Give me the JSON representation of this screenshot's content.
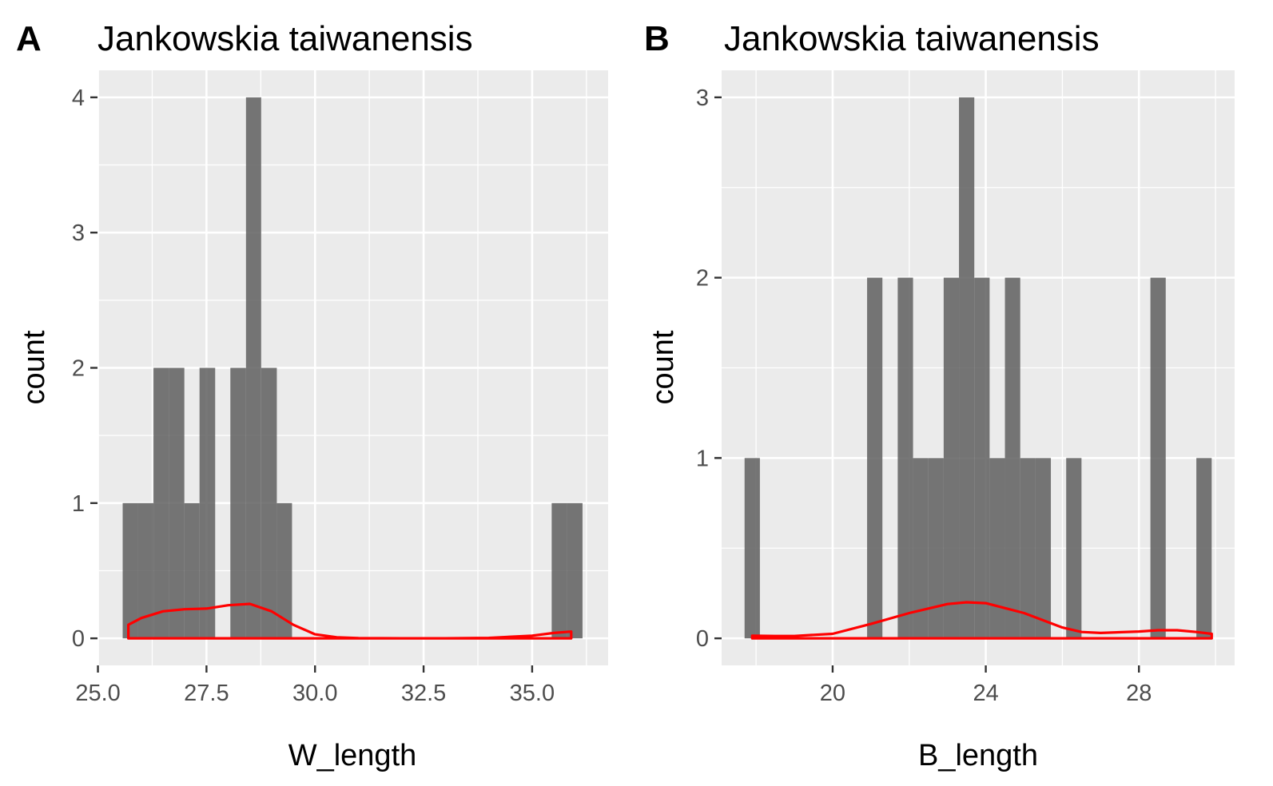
{
  "panels": [
    {
      "letter": "A",
      "title": "Jankowskia taiwanensis",
      "xlabel": "W_length",
      "ylabel": "count"
    },
    {
      "letter": "B",
      "title": "Jankowskia taiwanensis",
      "xlabel": "B_length",
      "ylabel": "count"
    }
  ],
  "colors": {
    "panel_bg": "#ebebeb",
    "grid": "#ffffff",
    "bar": "#595959",
    "density": "#ff0000"
  },
  "chart_data": [
    {
      "type": "bar",
      "subtype": "histogram with density overlay",
      "title": "Jankowskia taiwanensis",
      "xlabel": "W_length",
      "ylabel": "count",
      "xlim": [
        24.99,
        36.75
      ],
      "ylim": [
        -0.2,
        4.2
      ],
      "x_ticks": [
        25.0,
        27.5,
        30.0,
        32.5,
        35.0
      ],
      "x_tick_labels": [
        "25.0",
        "27.5",
        "30.0",
        "32.5",
        "35.0"
      ],
      "y_ticks": [
        0,
        1,
        2,
        3,
        4
      ],
      "y_tick_labels": [
        "0",
        "1",
        "2",
        "3",
        "4"
      ],
      "grid": true,
      "bin_width": 0.355,
      "bins": [
        {
          "x": [
            25.57,
            25.92
          ],
          "count": 1
        },
        {
          "x": [
            25.92,
            26.28
          ],
          "count": 1
        },
        {
          "x": [
            26.28,
            26.63
          ],
          "count": 2
        },
        {
          "x": [
            26.63,
            26.99
          ],
          "count": 2
        },
        {
          "x": [
            26.99,
            27.34
          ],
          "count": 1
        },
        {
          "x": [
            27.34,
            27.7
          ],
          "count": 2
        },
        {
          "x": [
            28.05,
            28.41
          ],
          "count": 2
        },
        {
          "x": [
            28.41,
            28.76
          ],
          "count": 4
        },
        {
          "x": [
            28.76,
            29.12
          ],
          "count": 2
        },
        {
          "x": [
            29.12,
            29.47
          ],
          "count": 1
        },
        {
          "x": [
            35.45,
            35.81
          ],
          "count": 1
        },
        {
          "x": [
            35.81,
            36.16
          ],
          "count": 1
        }
      ],
      "density": {
        "x": [
          25.7,
          26.0,
          26.5,
          27.0,
          27.5,
          28.0,
          28.5,
          29.0,
          29.5,
          30.0,
          30.5,
          31.0,
          32.0,
          33.0,
          34.0,
          35.0,
          35.5,
          35.9
        ],
        "y": [
          0.1,
          0.15,
          0.2,
          0.215,
          0.22,
          0.245,
          0.255,
          0.2,
          0.1,
          0.03,
          0.008,
          0.002,
          0.0,
          0.0,
          0.003,
          0.02,
          0.04,
          0.05
        ]
      }
    },
    {
      "type": "bar",
      "subtype": "histogram with density overlay",
      "title": "Jankowskia taiwanensis",
      "xlabel": "B_length",
      "ylabel": "count",
      "xlim": [
        17.1,
        30.5
      ],
      "ylim": [
        -0.15,
        3.15
      ],
      "x_ticks": [
        20,
        24,
        28
      ],
      "x_tick_labels": [
        "20",
        "24",
        "28"
      ],
      "y_ticks": [
        0,
        1,
        2,
        3
      ],
      "y_tick_labels": [
        "0",
        "1",
        "2",
        "3"
      ],
      "grid": true,
      "bin_width": 0.41,
      "bins": [
        {
          "x": [
            17.7,
            18.1
          ],
          "count": 1
        },
        {
          "x": [
            20.9,
            21.3
          ],
          "count": 2
        },
        {
          "x": [
            21.7,
            22.1
          ],
          "count": 2
        },
        {
          "x": [
            22.1,
            22.5
          ],
          "count": 1
        },
        {
          "x": [
            22.5,
            22.9
          ],
          "count": 1
        },
        {
          "x": [
            22.9,
            23.3
          ],
          "count": 2
        },
        {
          "x": [
            23.3,
            23.7
          ],
          "count": 3
        },
        {
          "x": [
            23.7,
            24.1
          ],
          "count": 2
        },
        {
          "x": [
            24.1,
            24.5
          ],
          "count": 1
        },
        {
          "x": [
            24.5,
            24.9
          ],
          "count": 2
        },
        {
          "x": [
            24.9,
            25.3
          ],
          "count": 1
        },
        {
          "x": [
            25.3,
            25.7
          ],
          "count": 1
        },
        {
          "x": [
            26.1,
            26.5
          ],
          "count": 1
        },
        {
          "x": [
            28.3,
            28.7
          ],
          "count": 2
        },
        {
          "x": [
            29.5,
            29.9
          ],
          "count": 1
        }
      ],
      "density": {
        "x": [
          17.9,
          18.5,
          19.0,
          20.0,
          21.0,
          22.0,
          23.0,
          23.5,
          24.0,
          25.0,
          26.0,
          26.5,
          27.0,
          28.0,
          28.5,
          29.0,
          29.5,
          29.9
        ],
        "y": [
          0.015,
          0.013,
          0.013,
          0.025,
          0.08,
          0.14,
          0.19,
          0.2,
          0.195,
          0.14,
          0.06,
          0.035,
          0.03,
          0.038,
          0.045,
          0.045,
          0.035,
          0.025
        ]
      }
    }
  ]
}
